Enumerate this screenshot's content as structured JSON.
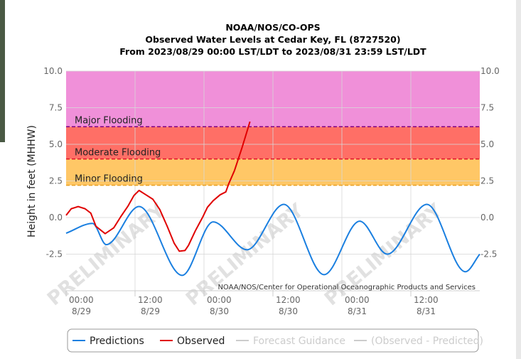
{
  "chart_data": {
    "type": "line",
    "title": "NOAA/NOS/CO-OPS",
    "subtitle": "Observed Water Levels at Cedar Key, FL (8727520)",
    "period": "From 2023/08/29 00:00 LST/LDT to 2023/08/31 23:59 LST/LDT",
    "y_label": "Height in feet (MHHW)",
    "credit": "NOAA/NOS/Center for Operational Oceanographic Products and Services",
    "watermark": "PRELIMINARY",
    "xlim": [
      0,
      72
    ],
    "xticks": [
      {
        "value": 0,
        "label": "00:00",
        "date": "8/29"
      },
      {
        "value": 12,
        "label": "12:00",
        "date": "8/29"
      },
      {
        "value": 24,
        "label": "00:00",
        "date": "8/30"
      },
      {
        "value": 36,
        "label": "12:00",
        "date": "8/30"
      },
      {
        "value": 48,
        "label": "00:00",
        "date": "8/31"
      },
      {
        "value": 60,
        "label": "12:00",
        "date": "8/31"
      }
    ],
    "ylim": [
      -5,
      10
    ],
    "yticks": [
      -2.5,
      {
        "value": 0,
        "label": "0.0"
      },
      2.5,
      {
        "value": 5,
        "label": "5.0"
      },
      7.5,
      {
        "value": 10,
        "label": "10.0"
      }
    ],
    "y2lim": [
      -5,
      10
    ],
    "y2ticks": [
      -2.5,
      {
        "value": 0,
        "label": "0.0"
      },
      2.5,
      {
        "value": 5,
        "label": "5.0"
      },
      7.5,
      {
        "value": 10,
        "label": "10.0"
      }
    ],
    "grid": true,
    "legend": "bottom",
    "thresholds": [
      {
        "name": "Major Flooding",
        "value": 6.2,
        "color": "#800080",
        "fill": "#f090d9"
      },
      {
        "name": "Moderate Flooding",
        "value": 4.0,
        "color": "#e0102a",
        "fill": "#ff6f66"
      },
      {
        "name": "Minor Flooding",
        "value": 2.2,
        "color": "#e8a020",
        "fill": "#ffc766"
      }
    ],
    "series": [
      {
        "name": "Predictions",
        "color": "#1a7fe0",
        "smooth": true,
        "x": [
          0,
          4.6,
          7,
          12.7,
          20.2,
          25.6,
          31.5,
          37.9,
          44.9,
          51.1,
          55.9,
          62.8,
          69.5,
          72
        ],
        "values": [
          -1.07,
          -0.4,
          -1.85,
          0.75,
          -3.95,
          -0.3,
          -2.2,
          0.9,
          -3.9,
          -0.25,
          -2.5,
          0.9,
          -3.7,
          -2.5
        ]
      },
      {
        "name": "Observed",
        "color": "#e00000",
        "smooth": false,
        "x": [
          0,
          0.9,
          2.1,
          3.3,
          4.3,
          5.2,
          6.8,
          8.3,
          9.5,
          10.8,
          11.8,
          12.7,
          13.9,
          15.1,
          16.3,
          17.6,
          18.8,
          19.7,
          20.7,
          21.3,
          22.5,
          23.8,
          24.6,
          25.6,
          26.8,
          27.8,
          28.3,
          29.3,
          30.6,
          31.5,
          32.0
        ],
        "values": [
          0.15,
          0.6,
          0.75,
          0.6,
          0.3,
          -0.6,
          -1.1,
          -0.7,
          0.05,
          0.8,
          1.5,
          1.85,
          1.55,
          1.25,
          0.55,
          -0.6,
          -1.75,
          -2.3,
          -2.25,
          -1.9,
          -0.9,
          0.05,
          0.7,
          1.15,
          1.55,
          1.75,
          2.3,
          3.2,
          4.75,
          5.9,
          6.55
        ]
      },
      {
        "name": "Forecast Guidance",
        "color": "#cccccc",
        "visible": false,
        "x": [],
        "values": []
      },
      {
        "name": "(Observed - Predicted)",
        "color": "#cccccc",
        "visible": false,
        "x": [],
        "values": []
      }
    ]
  }
}
